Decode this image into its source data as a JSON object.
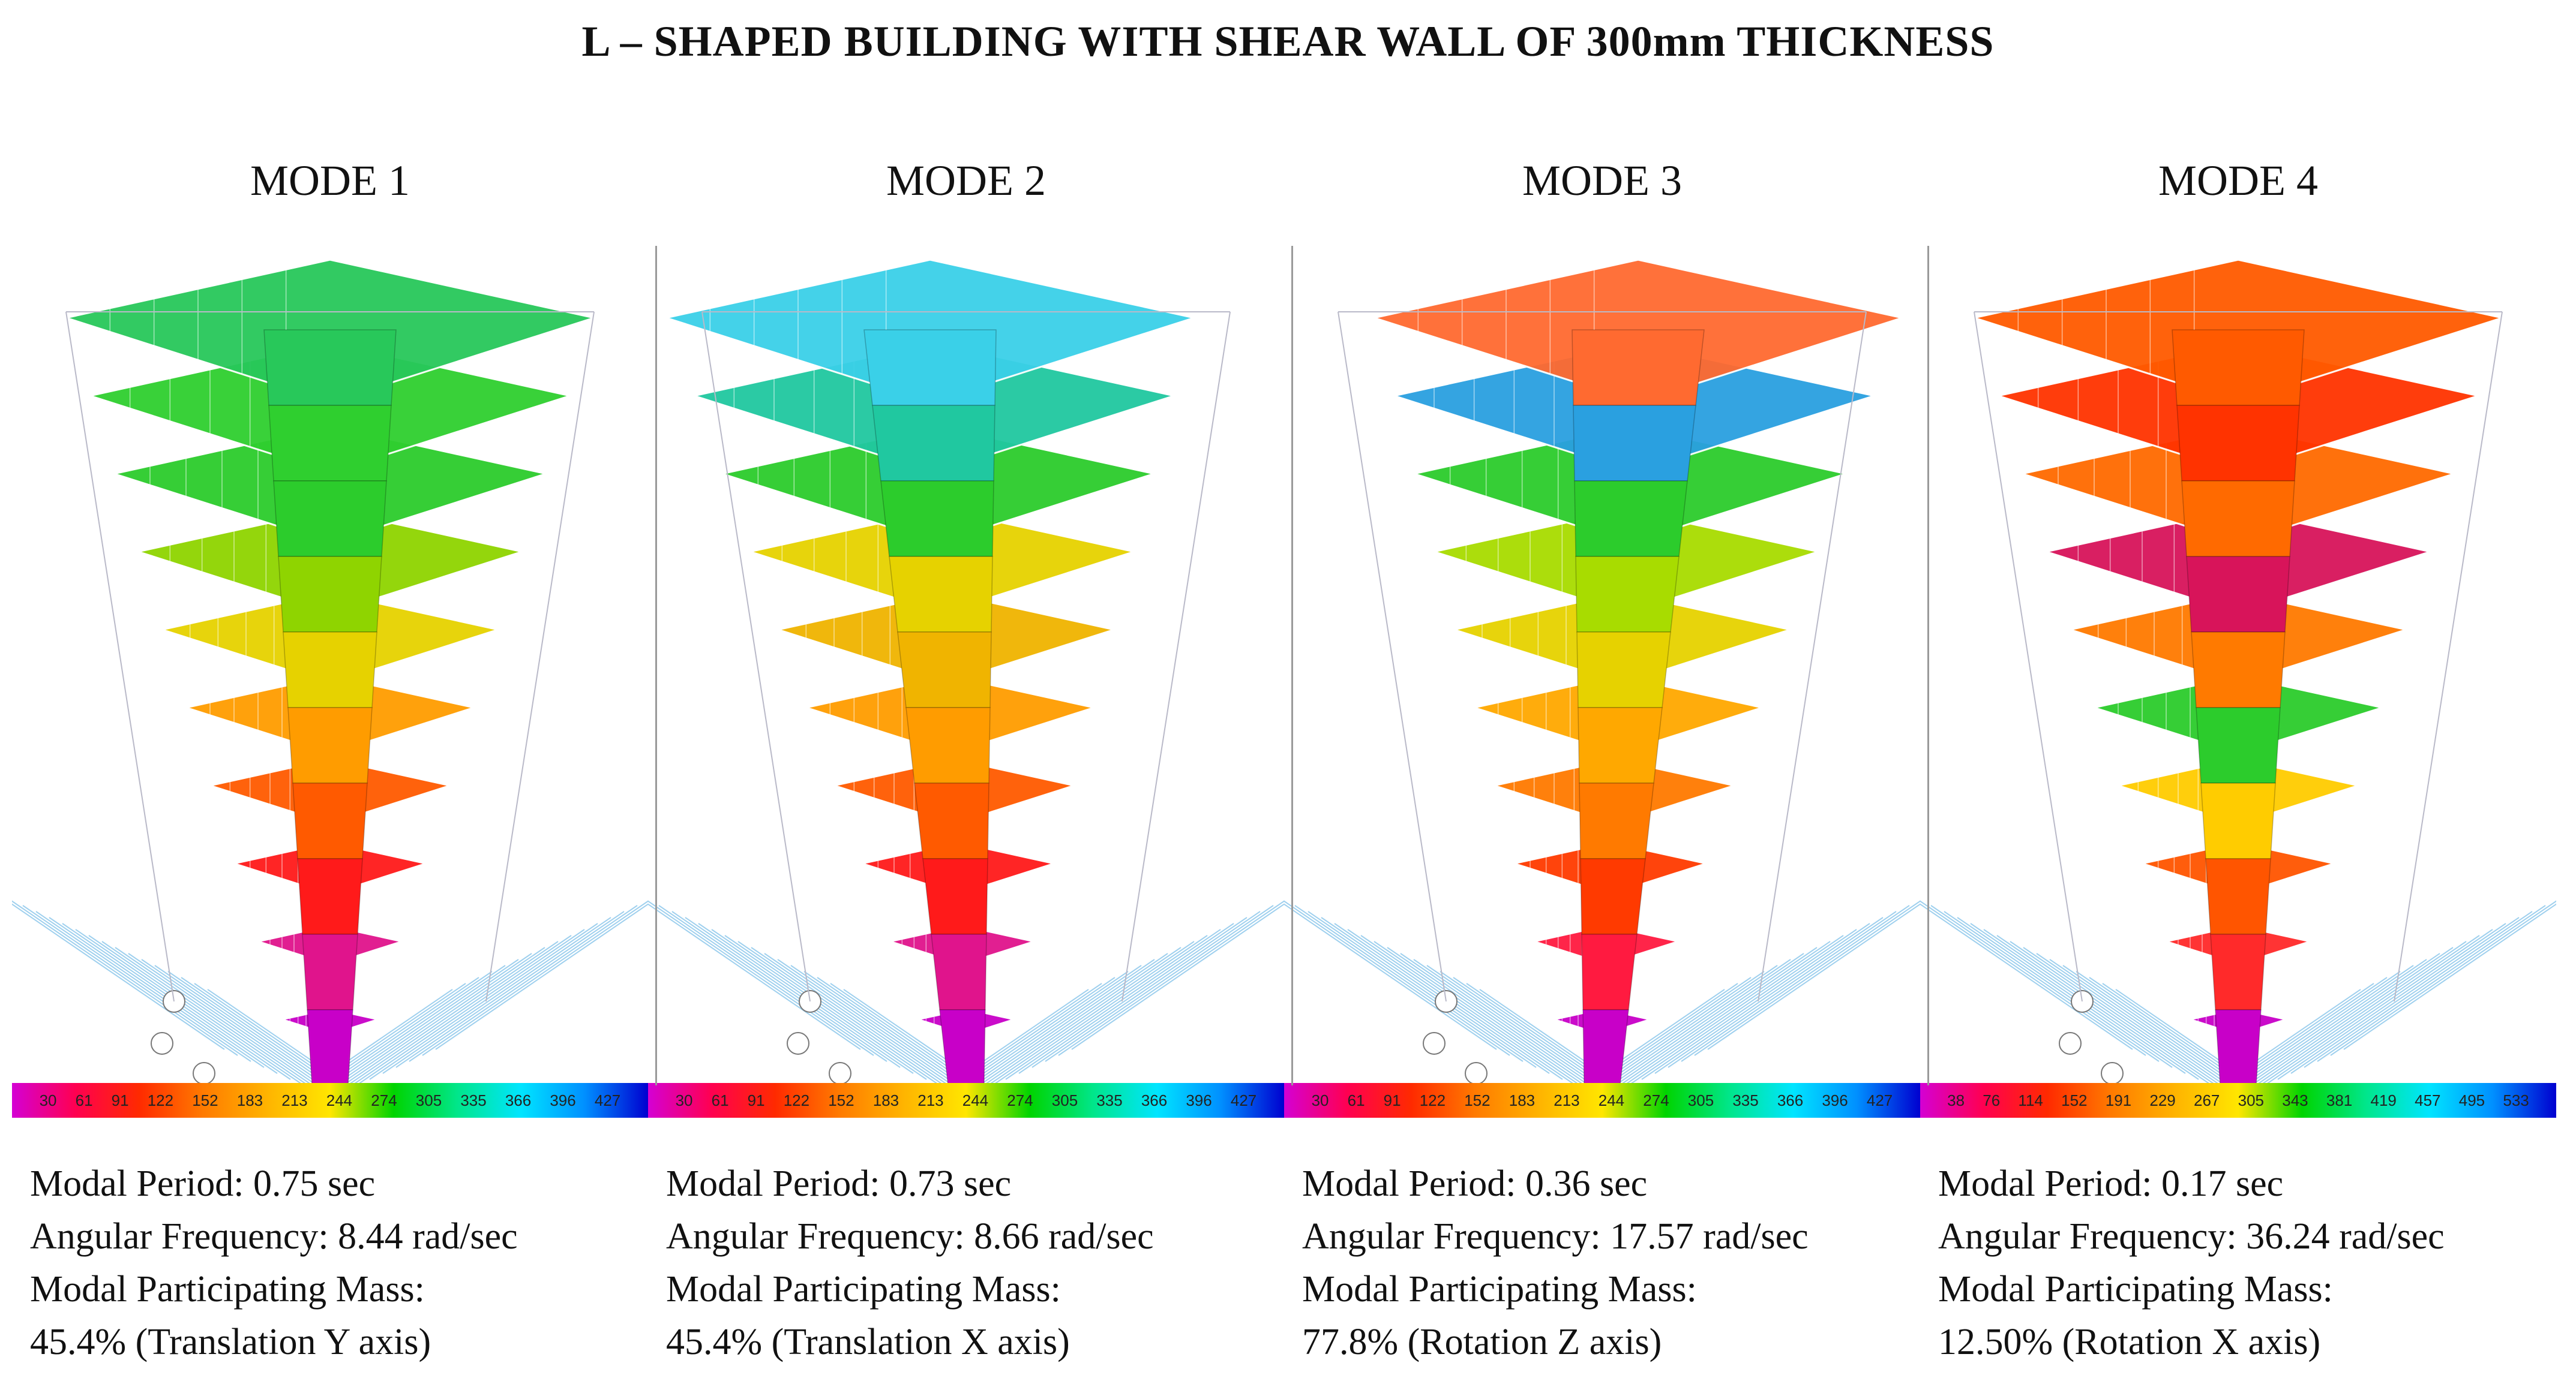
{
  "title": "L – SHAPED BUILDING WITH SHEAR WALL OF 300mm THICKNESS",
  "modes": [
    {
      "heading": "MODE 1",
      "scale_ticks": [
        "30",
        "61",
        "91",
        "122",
        "152",
        "183",
        "213",
        "244",
        "274",
        "305",
        "335",
        "366",
        "396",
        "427"
      ],
      "period": "Modal Period: 0.75 sec",
      "frequency": "Angular Frequency: 8.44 rad/sec",
      "mass_label": "Modal Participating Mass:",
      "mass_value": "45.4% (Translation Y axis)"
    },
    {
      "heading": "MODE 2",
      "scale_ticks": [
        "30",
        "61",
        "91",
        "122",
        "152",
        "183",
        "213",
        "244",
        "274",
        "305",
        "335",
        "366",
        "396",
        "427"
      ],
      "period": "Modal Period: 0.73 sec",
      "frequency": "Angular Frequency: 8.66 rad/sec",
      "mass_label": "Modal Participating Mass:",
      "mass_value": "45.4% (Translation X axis)"
    },
    {
      "heading": "MODE 3",
      "scale_ticks": [
        "30",
        "61",
        "91",
        "122",
        "152",
        "183",
        "213",
        "244",
        "274",
        "305",
        "335",
        "366",
        "396",
        "427"
      ],
      "period": "Modal Period: 0.36 sec",
      "frequency": "Angular Frequency: 17.57 rad/sec",
      "mass_label": "Modal Participating Mass:",
      "mass_value": "77.8% (Rotation Z axis)"
    },
    {
      "heading": "MODE 4",
      "scale_ticks": [
        "38",
        "76",
        "114",
        "152",
        "191",
        "229",
        "267",
        "305",
        "343",
        "381",
        "419",
        "457",
        "495",
        "533"
      ],
      "period": "Modal Period: 0.17 sec",
      "frequency": "Angular Frequency: 36.24 rad/sec",
      "mass_label": "Modal Participating Mass:",
      "mass_value": "12.50% (Rotation X axis)"
    }
  ],
  "contour_colors": {
    "gradient": [
      "#d400d4",
      "#ff0050",
      "#ff2a00",
      "#ff7a00",
      "#ffb300",
      "#ffe600",
      "#00d400",
      "#00e68a",
      "#00e5ff",
      "#0090ff",
      "#0000d0"
    ],
    "mode_palettes": [
      [
        "#c800c8",
        "#e0148c",
        "#ff1a1a",
        "#ff5a00",
        "#ff9c00",
        "#e6d200",
        "#8fd400",
        "#2ccc2c",
        "#2fcf2f",
        "#28c85a"
      ],
      [
        "#c800c8",
        "#e0148c",
        "#ff1a1a",
        "#ff5a00",
        "#ff9c00",
        "#f0b400",
        "#e6d200",
        "#2ccc2c",
        "#20c8a0",
        "#3ad0e8"
      ],
      [
        "#c800c8",
        "#ff1a40",
        "#ff3a00",
        "#ff7a00",
        "#ffa800",
        "#e6d200",
        "#a8dc00",
        "#2ccc2c",
        "#2aa0e0",
        "#ff6a30"
      ],
      [
        "#c800c8",
        "#ff2a2a",
        "#ff5500",
        "#ffcc00",
        "#2ccc2c",
        "#ff7a00",
        "#d8145a",
        "#ff6a00",
        "#ff3300",
        "#ff5a00"
      ]
    ]
  }
}
